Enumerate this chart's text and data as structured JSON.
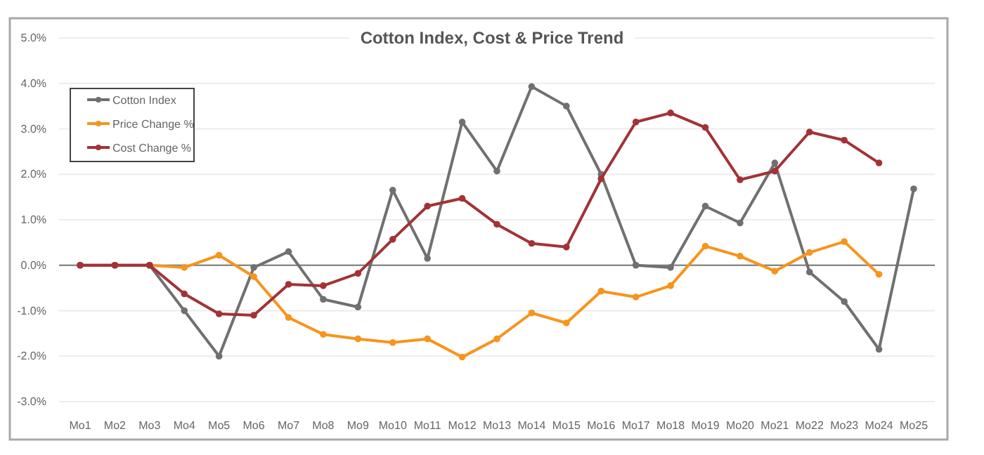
{
  "chart_data": {
    "type": "line",
    "title": "Cotton Index, Cost & Price Trend",
    "categories": [
      "Mo1",
      "Mo2",
      "Mo3",
      "Mo4",
      "Mo5",
      "Mo6",
      "Mo7",
      "Mo8",
      "Mo9",
      "Mo10",
      "Mo11",
      "Mo12",
      "Mo13",
      "Mo14",
      "Mo15",
      "Mo16",
      "Mo17",
      "Mo18",
      "Mo19",
      "Mo20",
      "Mo21",
      "Mo22",
      "Mo23",
      "Mo24",
      "Mo25"
    ],
    "series": [
      {
        "name": "Cotton Index",
        "color": "#707070",
        "values": [
          0,
          0,
          0,
          -1.0,
          -2.0,
          -0.05,
          0.3,
          -0.75,
          -0.92,
          1.65,
          0.15,
          3.15,
          2.07,
          3.93,
          3.5,
          2.0,
          0.0,
          -0.05,
          1.3,
          0.93,
          2.25,
          -0.15,
          -0.8,
          -1.85,
          1.68
        ]
      },
      {
        "name": "Price Change %",
        "color": "#f7941d",
        "values": [
          null,
          null,
          0,
          -0.05,
          0.22,
          -0.25,
          -1.15,
          -1.52,
          -1.62,
          -1.7,
          -1.62,
          -2.02,
          -1.62,
          -1.05,
          -1.27,
          -0.57,
          -0.7,
          -0.45,
          0.42,
          0.2,
          -0.13,
          0.28,
          0.52,
          -0.2,
          null
        ]
      },
      {
        "name": "Cost Change %",
        "color": "#a33236",
        "values": [
          0,
          0,
          0,
          -0.63,
          -1.07,
          -1.1,
          -0.42,
          -0.45,
          -0.18,
          0.57,
          1.3,
          1.47,
          0.9,
          0.48,
          0.4,
          1.9,
          3.15,
          3.35,
          3.03,
          1.88,
          2.07,
          2.93,
          2.75,
          2.25,
          null
        ]
      }
    ],
    "ylim": [
      -3,
      5
    ],
    "yticks": [
      {
        "value": -3,
        "label": "-3.0%"
      },
      {
        "value": -2,
        "label": "-2.0%"
      },
      {
        "value": -1,
        "label": "-1.0%"
      },
      {
        "value": 0,
        "label": "0.0%"
      },
      {
        "value": 1,
        "label": "1.0%"
      },
      {
        "value": 2,
        "label": "2.0%"
      },
      {
        "value": 3,
        "label": "3.0%"
      },
      {
        "value": 4,
        "label": "4.0%"
      },
      {
        "value": 5,
        "label": "5.0%"
      }
    ],
    "grid": "y",
    "legend": "top left",
    "marker": "circle",
    "line_style": "solid"
  }
}
